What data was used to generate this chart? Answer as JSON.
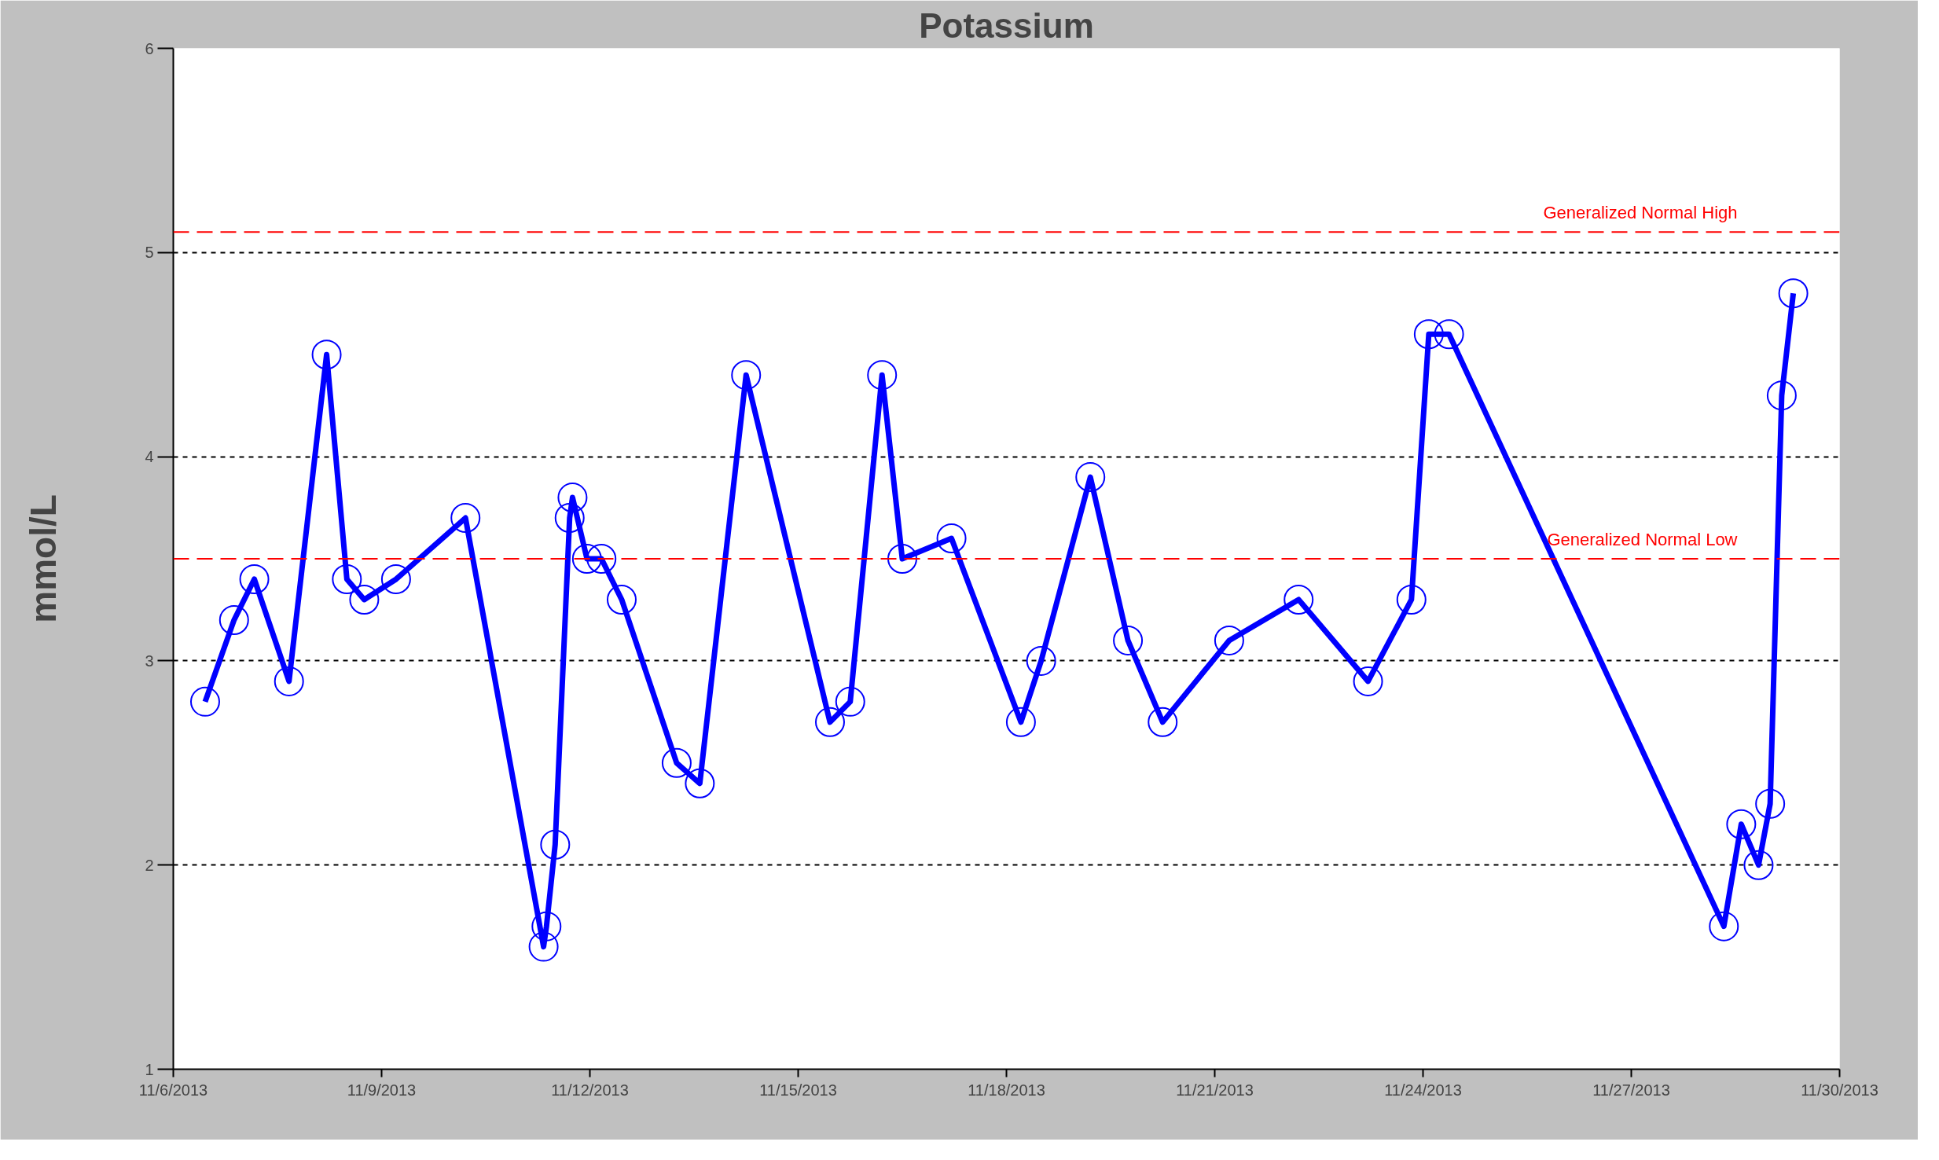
{
  "chart_data": {
    "type": "line",
    "title": "Potassium",
    "ylabel": "mmol/L",
    "x": [
      "2013-11-06T11:00",
      "2013-11-06T21:00",
      "2013-11-07T04:00",
      "2013-11-07T16:00",
      "2013-11-08T05:00",
      "2013-11-08T12:00",
      "2013-11-08T18:00",
      "2013-11-09T05:00",
      "2013-11-10T05:00",
      "2013-11-11T08:00",
      "2013-11-11T09:00",
      "2013-11-11T12:00",
      "2013-11-11T17:00",
      "2013-11-11T18:00",
      "2013-11-11T23:00",
      "2013-11-12T04:00",
      "2013-11-12T11:00",
      "2013-11-13T06:00",
      "2013-11-13T14:00",
      "2013-11-14T06:00",
      "2013-11-15T11:00",
      "2013-11-15T18:00",
      "2013-11-16T05:00",
      "2013-11-16T12:00",
      "2013-11-17T05:00",
      "2013-11-18T05:00",
      "2013-11-18T12:00",
      "2013-11-19T05:00",
      "2013-11-19T18:00",
      "2013-11-20T06:00",
      "2013-11-21T05:00",
      "2013-11-22T05:00",
      "2013-11-23T05:00",
      "2013-11-23T20:00",
      "2013-11-24T02:00",
      "2013-11-24T09:00",
      "2013-11-28T08:00",
      "2013-11-28T14:00",
      "2013-11-28T20:00",
      "2013-11-29T00:00",
      "2013-11-29T04:00",
      "2013-11-29T08:00"
    ],
    "series": [
      {
        "color": "#0000ff",
        "values": [
          2.8,
          3.2,
          3.4,
          2.9,
          4.5,
          3.4,
          3.3,
          3.4,
          3.7,
          1.6,
          1.7,
          2.1,
          3.7,
          3.8,
          3.5,
          3.5,
          3.3,
          2.5,
          2.4,
          4.4,
          2.7,
          2.8,
          4.4,
          3.5,
          3.6,
          2.7,
          3.0,
          3.9,
          3.1,
          2.7,
          3.1,
          3.3,
          2.9,
          3.3,
          4.6,
          4.6,
          1.7,
          2.2,
          2.0,
          2.3,
          4.3,
          4.8
        ]
      }
    ],
    "xlim": [
      "2013-11-06",
      "2013-11-30"
    ],
    "xticks": [
      {
        "value": "2013-11-06",
        "label": "11/6/2013"
      },
      {
        "value": "2013-11-09",
        "label": "11/9/2013"
      },
      {
        "value": "2013-11-12",
        "label": "11/12/2013"
      },
      {
        "value": "2013-11-15",
        "label": "11/15/2013"
      },
      {
        "value": "2013-11-18",
        "label": "11/18/2013"
      },
      {
        "value": "2013-11-21",
        "label": "11/21/2013"
      },
      {
        "value": "2013-11-24",
        "label": "11/24/2013"
      },
      {
        "value": "2013-11-27",
        "label": "11/27/2013"
      },
      {
        "value": "2013-11-30",
        "label": "11/30/2013"
      }
    ],
    "ylim": [
      1,
      6
    ],
    "yticks": [
      1,
      2,
      3,
      4,
      5,
      6
    ],
    "grid": "y",
    "marker": "circle",
    "line_style": "solid",
    "ref_lines": [
      {
        "axis": "y",
        "value": 5.1,
        "label": "Generalized Normal High",
        "color": "#ff0000",
        "line_style": "dashed"
      },
      {
        "axis": "y",
        "value": 3.5,
        "label": "Generalized Normal Low",
        "color": "#ff0000",
        "line_style": "dashed"
      }
    ]
  }
}
